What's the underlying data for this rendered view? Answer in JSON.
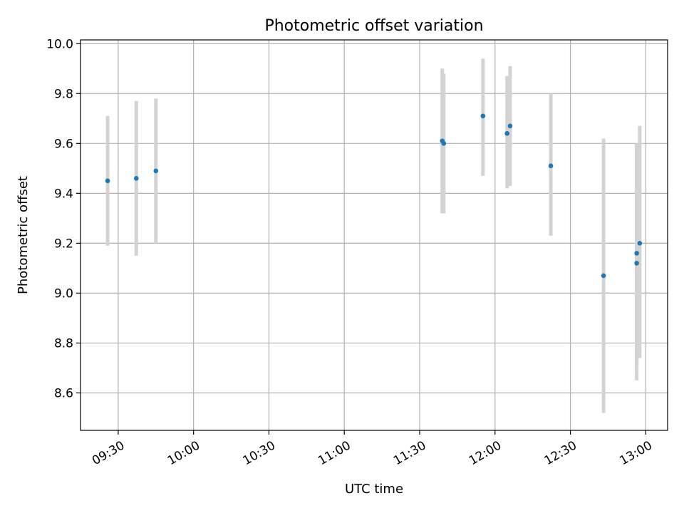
{
  "chart_data": {
    "type": "scatter",
    "title": "Photometric offset variation",
    "xlabel": "UTC time",
    "ylabel": "Photometric offset",
    "xlim_minutes": [
      9.25,
      13.145
    ],
    "ylim": [
      8.45,
      10.015
    ],
    "grid": true,
    "x_ticks": [
      {
        "minutes": 9.5,
        "label": "09:30"
      },
      {
        "minutes": 10.0,
        "label": "10:00"
      },
      {
        "minutes": 10.5,
        "label": "10:30"
      },
      {
        "minutes": 11.0,
        "label": "11:00"
      },
      {
        "minutes": 11.5,
        "label": "11:30"
      },
      {
        "minutes": 12.0,
        "label": "12:00"
      },
      {
        "minutes": 12.5,
        "label": "12:30"
      },
      {
        "minutes": 13.0,
        "label": "13:00"
      }
    ],
    "y_ticks": [
      {
        "value": 8.6,
        "label": "8.6"
      },
      {
        "value": 8.8,
        "label": "8.8"
      },
      {
        "value": 9.0,
        "label": "9.0"
      },
      {
        "value": 9.2,
        "label": "9.2"
      },
      {
        "value": 9.4,
        "label": "9.4"
      },
      {
        "value": 9.6,
        "label": "9.6"
      },
      {
        "value": 9.8,
        "label": "9.8"
      },
      {
        "value": 10.0,
        "label": "10.0"
      }
    ],
    "series": [
      {
        "name": "Photometric offset",
        "color": "#1f77b4",
        "errorbar_color": "#d3d3d3",
        "points": [
          {
            "time": "09:26",
            "x": 9.43,
            "y": 9.45,
            "ylow": 9.19,
            "yhigh": 9.71
          },
          {
            "time": "09:37",
            "x": 9.62,
            "y": 9.46,
            "ylow": 9.15,
            "yhigh": 9.77
          },
          {
            "time": "09:45",
            "x": 9.75,
            "y": 9.49,
            "ylow": 9.2,
            "yhigh": 9.78
          },
          {
            "time": "11:39",
            "x": 11.65,
            "y": 9.61,
            "ylow": 9.32,
            "yhigh": 9.9
          },
          {
            "time": "11:40",
            "x": 11.66,
            "y": 9.6,
            "ylow": 9.32,
            "yhigh": 9.88
          },
          {
            "time": "11:55",
            "x": 11.92,
            "y": 9.71,
            "ylow": 9.47,
            "yhigh": 9.94
          },
          {
            "time": "12:05",
            "x": 12.08,
            "y": 9.64,
            "ylow": 9.42,
            "yhigh": 9.87
          },
          {
            "time": "12:06",
            "x": 12.1,
            "y": 9.67,
            "ylow": 9.43,
            "yhigh": 9.91
          },
          {
            "time": "12:22",
            "x": 12.37,
            "y": 9.51,
            "ylow": 9.23,
            "yhigh": 9.8
          },
          {
            "time": "12:43",
            "x": 12.72,
            "y": 9.07,
            "ylow": 8.52,
            "yhigh": 9.62
          },
          {
            "time": "12:56",
            "x": 12.94,
            "y": 9.16,
            "ylow": 8.7,
            "yhigh": 9.6
          },
          {
            "time": "12:56",
            "x": 12.94,
            "y": 9.12,
            "ylow": 8.65,
            "yhigh": 9.6
          },
          {
            "time": "12:58",
            "x": 12.96,
            "y": 9.2,
            "ylow": 8.74,
            "yhigh": 9.67
          }
        ]
      }
    ]
  }
}
